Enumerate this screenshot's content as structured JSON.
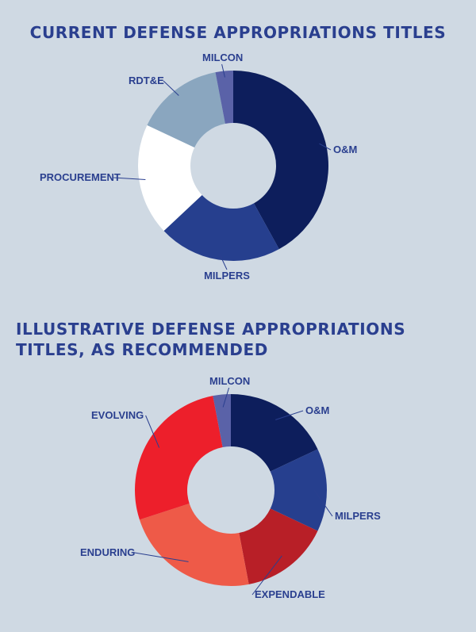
{
  "chart_data": [
    {
      "type": "pie",
      "title": "CURRENT DEFENSE APPROPRIATIONS TITLES",
      "categories": [
        "O&M",
        "MILPERS",
        "PROCUREMENT",
        "RDT&E",
        "MILCON"
      ],
      "values": [
        42,
        21,
        19,
        15,
        3
      ],
      "colors": [
        "#0d1e5c",
        "#263f8e",
        "#ffffff",
        "#8aa6bf",
        "#5a62a8"
      ],
      "legend": "none"
    },
    {
      "type": "pie",
      "title": "ILLUSTRATIVE DEFENSE APPROPRIATIONS\nTITLES, AS RECOMMENDED",
      "categories": [
        "O&M",
        "MILPERS",
        "EXPENDABLE",
        "ENDURING",
        "EVOLVING",
        "MILCON"
      ],
      "values": [
        18,
        14,
        15,
        23,
        27,
        3
      ],
      "colors": [
        "#0d1e5c",
        "#263f8e",
        "#b81f27",
        "#ee5a48",
        "#ed1f2b",
        "#5a62a8"
      ],
      "legend": "none"
    }
  ]
}
